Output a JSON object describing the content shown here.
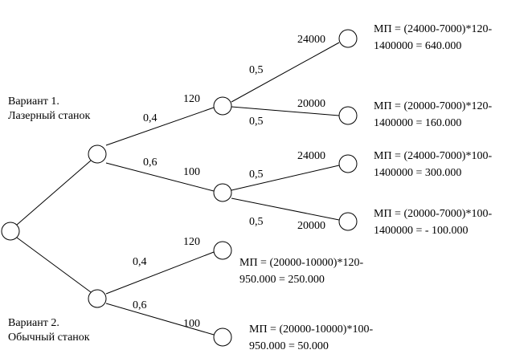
{
  "variants": [
    {
      "title": "Вариант 1.",
      "name": "Лазерный станок"
    },
    {
      "title": "Вариант 2.",
      "name": "Обычный станок"
    }
  ],
  "edge_labels": [
    "0,4",
    "0,6",
    "120",
    "100",
    "0,5",
    "24000",
    "20000",
    "0,5",
    "24000",
    "0,5",
    "0,5",
    "20000",
    "120",
    "0,4",
    "0,6",
    "100"
  ],
  "outcomes": [
    [
      "МП = (24000-7000)*120-",
      "1400000 = 640.000"
    ],
    [
      "МП = (20000-7000)*120-",
      "1400000 = 160.000"
    ],
    [
      "МП = (24000-7000)*100-",
      "1400000 = 300.000"
    ],
    [
      "МП = (20000-7000)*100-",
      "1400000 = - 100.000"
    ],
    [
      "МП = (20000-10000)*120-",
      "950.000 = 250.000"
    ],
    [
      "МП = (20000-10000)*100-",
      "950.000 = 50.000"
    ]
  ]
}
